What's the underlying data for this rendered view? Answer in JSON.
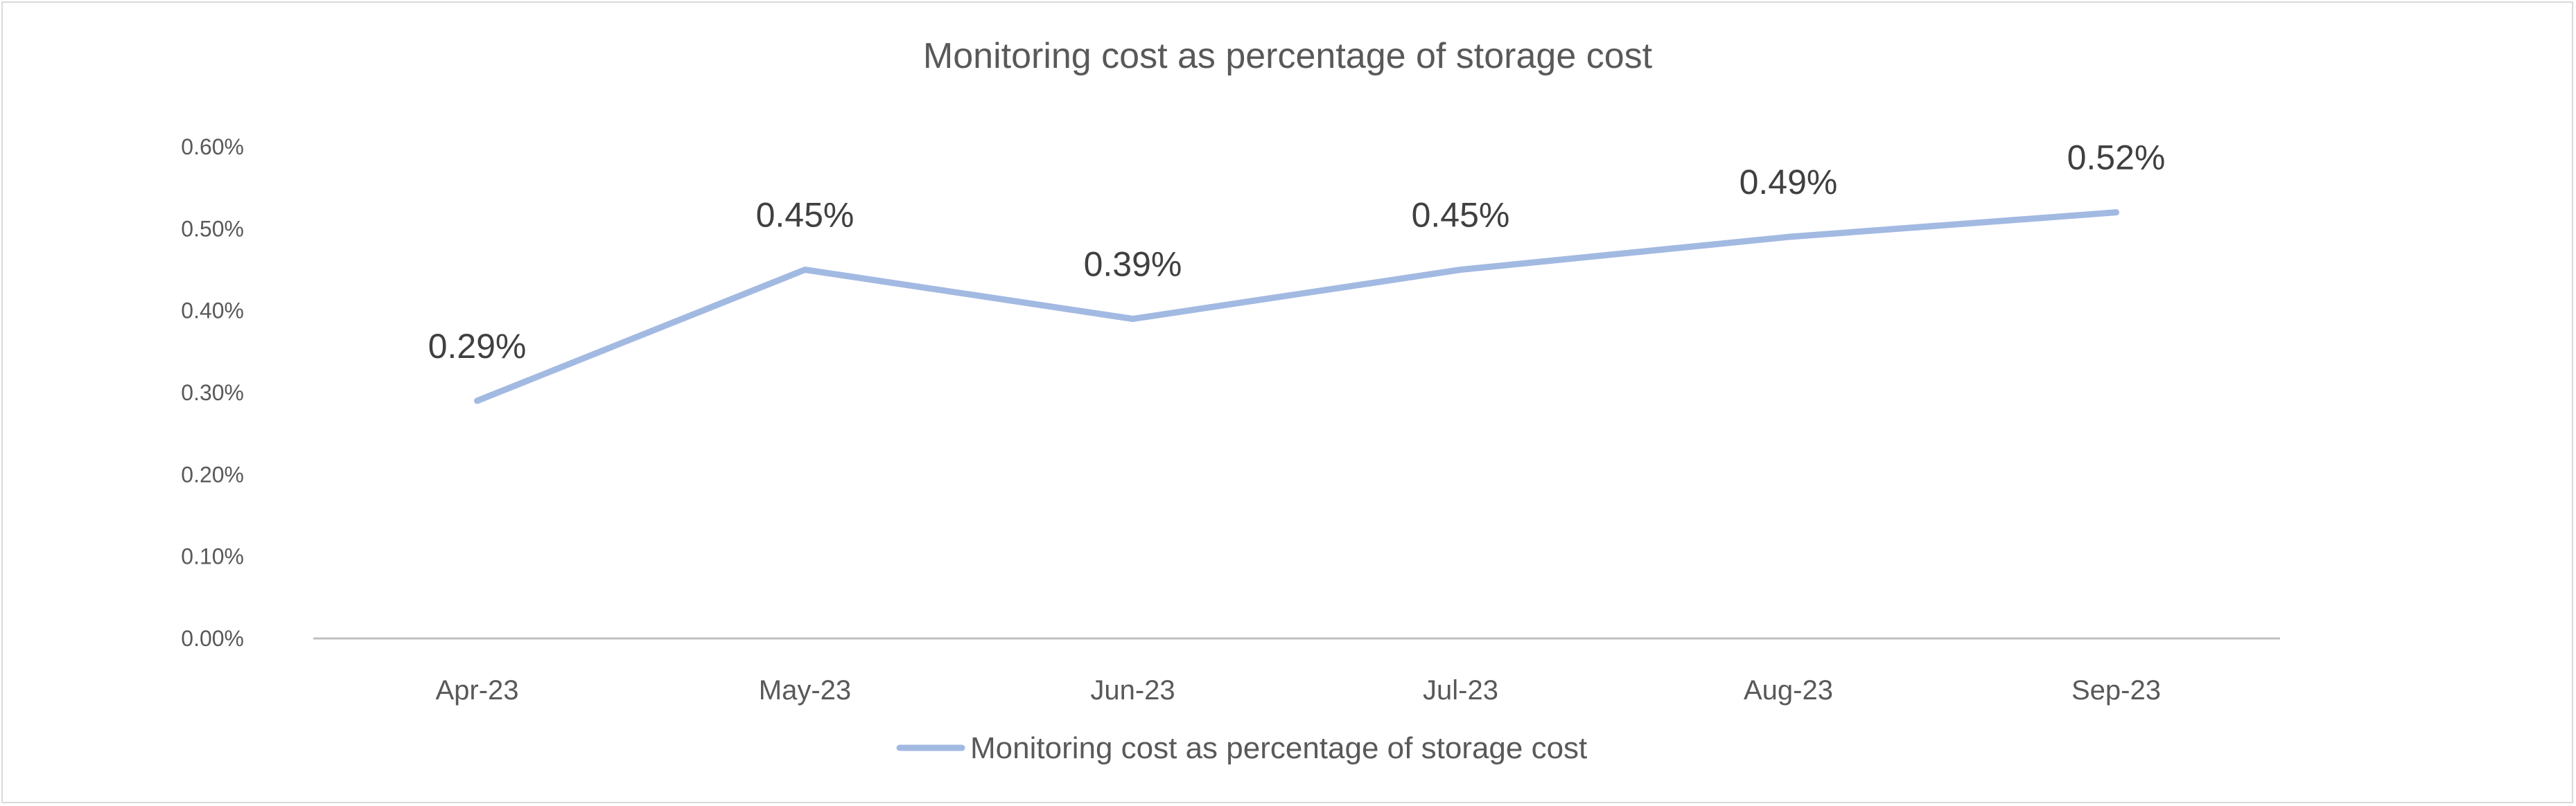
{
  "chart_data": {
    "type": "line",
    "title": "Monitoring cost as percentage of storage cost",
    "xlabel": "",
    "ylabel": "",
    "categories": [
      "Apr-23",
      "May-23",
      "Jun-23",
      "Jul-23",
      "Aug-23",
      "Sep-23"
    ],
    "series": [
      {
        "name": "Monitoring cost as percentage of storage cost",
        "values": [
          0.29,
          0.45,
          0.39,
          0.45,
          0.49,
          0.52
        ],
        "data_labels": [
          "0.29%",
          "0.45%",
          "0.39%",
          "0.45%",
          "0.49%",
          "0.52%"
        ],
        "color": "#a2b9e2"
      }
    ],
    "ylim": [
      0,
      0.6
    ],
    "yticks": [
      "0.00%",
      "0.10%",
      "0.20%",
      "0.30%",
      "0.40%",
      "0.50%",
      "0.60%"
    ],
    "grid": false,
    "legend_position": "bottom"
  }
}
